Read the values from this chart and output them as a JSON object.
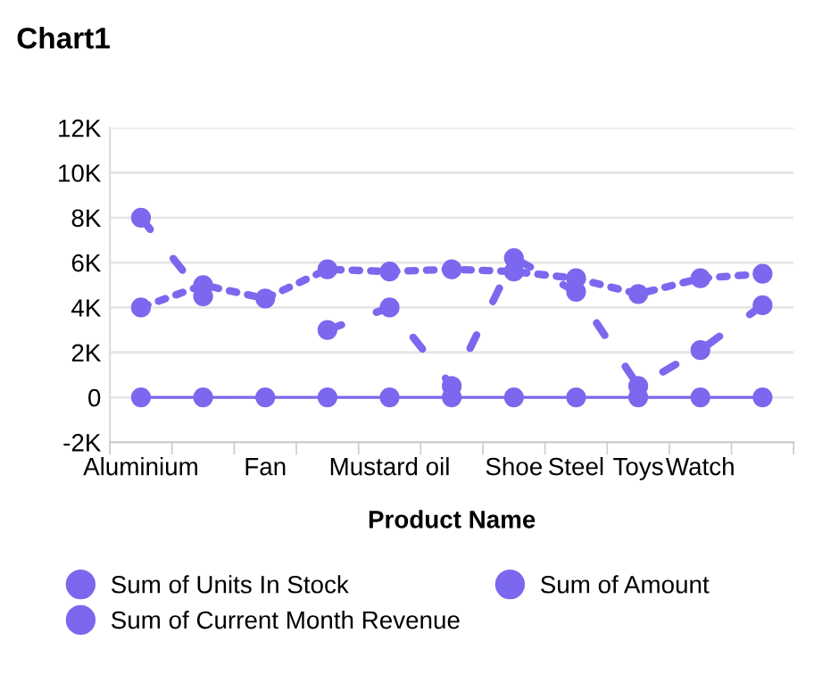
{
  "chart_data": {
    "type": "line",
    "title": "Chart1",
    "xlabel": "Product Name",
    "categories": [
      "Aluminium",
      null,
      "Fan",
      null,
      "Mustard oil",
      null,
      "Shoe",
      "Steel",
      "Toys",
      "Watch",
      null
    ],
    "series": [
      {
        "name": "Sum of Units In Stock",
        "color": "#7b68ee",
        "line_style": "solid",
        "values": [
          0,
          0,
          0,
          0,
          0,
          0,
          0,
          0,
          0,
          0,
          0
        ]
      },
      {
        "name": "Sum of Amount",
        "color": "#7b68ee",
        "line_style": "dashed",
        "values": [
          8000,
          4500,
          null,
          3000,
          4000,
          500,
          6200,
          4700,
          500,
          2100,
          4100
        ]
      },
      {
        "name": "Sum of Current Month Revenue",
        "color": "#7b68ee",
        "line_style": "dotted",
        "values": [
          4000,
          5000,
          4400,
          5700,
          5600,
          5700,
          5600,
          5300,
          4600,
          5300,
          5500
        ]
      }
    ],
    "ylim": [
      -2000,
      12000
    ],
    "yticks": [
      {
        "value": -2000,
        "label": "-2K"
      },
      0,
      {
        "value": 2000,
        "label": "2K"
      },
      {
        "value": 4000,
        "label": "4K"
      },
      {
        "value": 6000,
        "label": "6K"
      },
      {
        "value": 8000,
        "label": "8K"
      },
      {
        "value": 10000,
        "label": "10K"
      },
      {
        "value": 12000,
        "label": "12K"
      }
    ],
    "grid": "y",
    "marker": "circle",
    "legend": "bottom"
  }
}
